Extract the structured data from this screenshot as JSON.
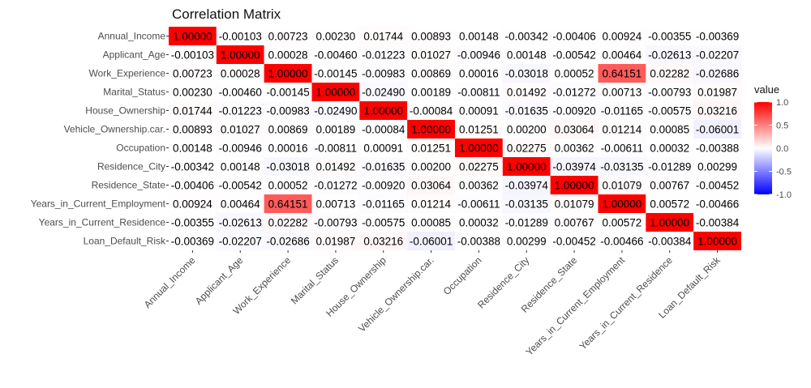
{
  "chart_data": {
    "type": "heatmap",
    "title": "Correlation Matrix",
    "variables": [
      "Annual_Income",
      "Applicant_Age",
      "Work_Experience",
      "Marital_Status",
      "House_Ownership",
      "Vehicle_Ownership.car.",
      "Occupation",
      "Residence_City",
      "Residence_State",
      "Years_in_Current_Employment",
      "Years_in_Current_Residence",
      "Loan_Default_Risk"
    ],
    "values": [
      [
        1.0,
        -0.00103,
        0.00723,
        0.0023,
        0.01744,
        0.00893,
        0.00148,
        -0.00342,
        -0.00406,
        0.00924,
        -0.00355,
        -0.00369
      ],
      [
        -0.00103,
        1.0,
        0.00028,
        -0.0046,
        -0.01223,
        0.01027,
        -0.00946,
        0.00148,
        -0.00542,
        0.00464,
        -0.02613,
        -0.02207
      ],
      [
        0.00723,
        0.00028,
        1.0,
        -0.00145,
        -0.00983,
        0.00869,
        0.00016,
        -0.03018,
        0.00052,
        0.64151,
        0.02282,
        -0.02686
      ],
      [
        0.0023,
        -0.0046,
        -0.00145,
        1.0,
        -0.0249,
        0.00189,
        -0.00811,
        0.01492,
        -0.01272,
        0.00713,
        -0.00793,
        0.01987
      ],
      [
        0.01744,
        -0.01223,
        -0.00983,
        -0.0249,
        1.0,
        -0.00084,
        0.00091,
        -0.01635,
        -0.0092,
        -0.01165,
        -0.00575,
        0.03216
      ],
      [
        0.00893,
        0.01027,
        0.00869,
        0.00189,
        -0.00084,
        1.0,
        0.01251,
        0.002,
        0.03064,
        0.01214,
        0.00085,
        -0.06001
      ],
      [
        0.00148,
        -0.00946,
        0.00016,
        -0.00811,
        0.00091,
        0.01251,
        1.0,
        0.02275,
        0.00362,
        -0.00611,
        0.00032,
        -0.00388
      ],
      [
        -0.00342,
        0.00148,
        -0.03018,
        0.01492,
        -0.01635,
        0.002,
        0.02275,
        1.0,
        -0.03974,
        -0.03135,
        -0.01289,
        0.00299
      ],
      [
        -0.00406,
        -0.00542,
        0.00052,
        -0.01272,
        -0.0092,
        0.03064,
        0.00362,
        -0.03974,
        1.0,
        0.01079,
        0.00767,
        -0.00452
      ],
      [
        0.00924,
        0.00464,
        0.64151,
        0.00713,
        -0.01165,
        0.01214,
        -0.00611,
        -0.03135,
        0.01079,
        1.0,
        0.00572,
        -0.00466
      ],
      [
        -0.00355,
        -0.02613,
        0.02282,
        -0.00793,
        -0.00575,
        0.00085,
        0.00032,
        -0.01289,
        0.00767,
        0.00572,
        1.0,
        -0.00384
      ],
      [
        -0.00369,
        -0.02207,
        -0.02686,
        0.01987,
        0.03216,
        -0.06001,
        -0.00388,
        0.00299,
        -0.00452,
        -0.00466,
        -0.00384,
        1.0
      ]
    ],
    "legend": {
      "title": "value",
      "range": [
        -1.0,
        1.0
      ],
      "ticks": [
        "1.0",
        "0.5",
        "0.0",
        "-0.5",
        "-1.0"
      ],
      "tick_values": [
        1.0,
        0.5,
        0.0,
        -0.5,
        -1.0
      ],
      "placement": "right"
    },
    "colors": {
      "low": "#0000ff",
      "mid": "#ffffff",
      "high": "#ff0000",
      "panel_bg": "#ebebeb",
      "grid": "#ffffff"
    },
    "grid": true
  }
}
